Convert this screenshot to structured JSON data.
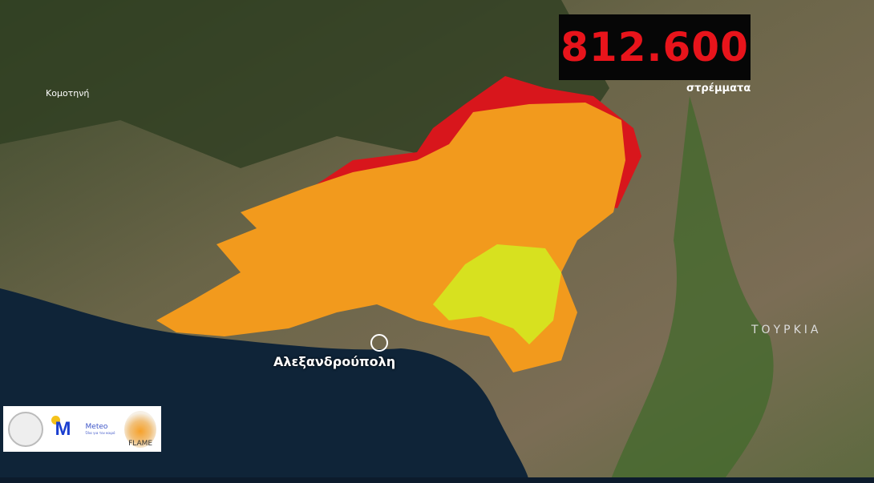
{
  "counter": {
    "value": "812.600",
    "unit": "στρέμματα"
  },
  "places": {
    "komotini": "Κομοτηνή",
    "alexandroupoli": "Αλεξανδρούπολη",
    "turkey": "ΤΟΥΡΚΙΑ"
  },
  "logos": {
    "meteo_name": "Meteo",
    "meteo_tagline": "Όλα για τον καιρό",
    "flame": "FLAME"
  },
  "colors": {
    "counter_text": "#e8141b",
    "burn_orange": "#f29a1d",
    "burn_red": "#d8161c",
    "burn_yellow": "#d7e11f",
    "sea": "#0f2438"
  }
}
